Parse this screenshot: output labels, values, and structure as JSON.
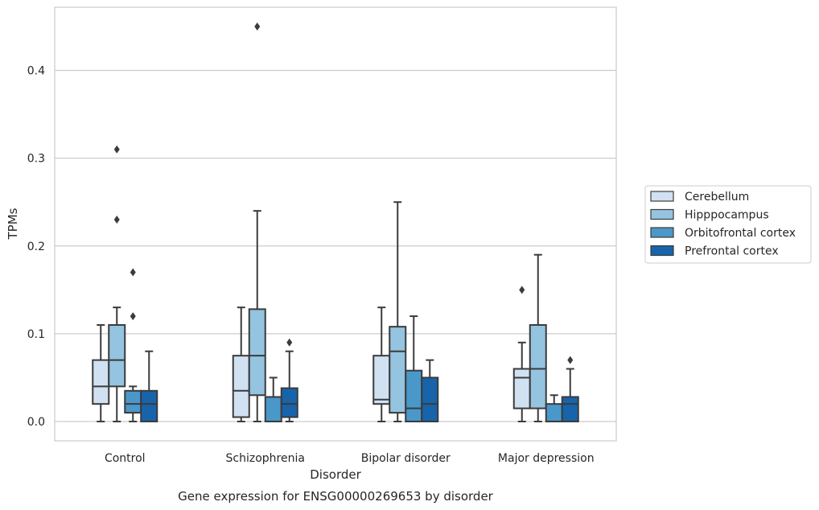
{
  "chart_data": {
    "type": "box",
    "title": "",
    "caption": "Gene expression for ENSG00000269653 by disorder",
    "xlabel": "Disorder",
    "ylabel": "TPMs",
    "ylim": [
      -0.022,
      0.472
    ],
    "yticks": [
      0.0,
      0.1,
      0.2,
      0.3,
      0.4
    ],
    "ytick_labels": [
      "0.0",
      "0.1",
      "0.2",
      "0.3",
      "0.4"
    ],
    "grid": "horizontal",
    "legend_position": "right",
    "categories": [
      "Control",
      "Schizophrenia",
      "Bipolar disorder",
      "Major depression"
    ],
    "series": [
      {
        "name": "Cerebellum",
        "color": "#d0e1f2",
        "boxes": [
          {
            "whislo": 0.0,
            "q1": 0.02,
            "med": 0.04,
            "q3": 0.07,
            "whishi": 0.11,
            "fliers": []
          },
          {
            "whislo": 0.0,
            "q1": 0.005,
            "med": 0.035,
            "q3": 0.075,
            "whishi": 0.13,
            "fliers": []
          },
          {
            "whislo": 0.0,
            "q1": 0.02,
            "med": 0.025,
            "q3": 0.075,
            "whishi": 0.13,
            "fliers": []
          },
          {
            "whislo": 0.0,
            "q1": 0.015,
            "med": 0.05,
            "q3": 0.06,
            "whishi": 0.09,
            "fliers": [
              0.15
            ]
          }
        ]
      },
      {
        "name": "Hipppocampus",
        "color": "#94c4df",
        "boxes": [
          {
            "whislo": 0.0,
            "q1": 0.04,
            "med": 0.07,
            "q3": 0.11,
            "whishi": 0.13,
            "fliers": [
              0.23,
              0.31
            ]
          },
          {
            "whislo": 0.0,
            "q1": 0.03,
            "med": 0.075,
            "q3": 0.128,
            "whishi": 0.24,
            "fliers": [
              0.45
            ]
          },
          {
            "whislo": 0.0,
            "q1": 0.01,
            "med": 0.08,
            "q3": 0.108,
            "whishi": 0.25,
            "fliers": []
          },
          {
            "whislo": 0.0,
            "q1": 0.015,
            "med": 0.06,
            "q3": 0.11,
            "whishi": 0.19,
            "fliers": []
          }
        ]
      },
      {
        "name": "Orbitofrontal cortex",
        "color": "#4a98c9",
        "boxes": [
          {
            "whislo": 0.0,
            "q1": 0.01,
            "med": 0.02,
            "q3": 0.035,
            "whishi": 0.04,
            "fliers": [
              0.12,
              0.17
            ]
          },
          {
            "whislo": 0.0,
            "q1": 0.0,
            "med": 0.0,
            "q3": 0.028,
            "whishi": 0.05,
            "fliers": []
          },
          {
            "whislo": 0.0,
            "q1": 0.0,
            "med": 0.015,
            "q3": 0.058,
            "whishi": 0.12,
            "fliers": []
          },
          {
            "whislo": 0.0,
            "q1": 0.0,
            "med": 0.0,
            "q3": 0.02,
            "whishi": 0.03,
            "fliers": []
          }
        ]
      },
      {
        "name": "Prefrontal cortex",
        "color": "#1764ab",
        "boxes": [
          {
            "whislo": 0.0,
            "q1": 0.0,
            "med": 0.02,
            "q3": 0.035,
            "whishi": 0.08,
            "fliers": []
          },
          {
            "whislo": 0.0,
            "q1": 0.005,
            "med": 0.02,
            "q3": 0.038,
            "whishi": 0.08,
            "fliers": [
              0.09
            ]
          },
          {
            "whislo": 0.0,
            "q1": 0.0,
            "med": 0.02,
            "q3": 0.05,
            "whishi": 0.07,
            "fliers": []
          },
          {
            "whislo": 0.0,
            "q1": 0.0,
            "med": 0.02,
            "q3": 0.028,
            "whishi": 0.06,
            "fliers": [
              0.07
            ]
          }
        ]
      }
    ]
  }
}
